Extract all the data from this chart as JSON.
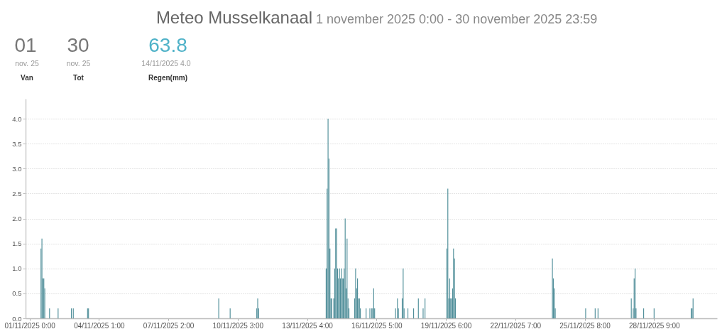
{
  "chart_data": {
    "type": "bar",
    "title": "Meteo Musselkanaal",
    "subtitle": "1 november 2025 0:00 - 30 november 2025 23:59",
    "annotations": [
      "01",
      "nov. 25",
      "Van",
      "30",
      "nov. 25",
      "Tot",
      "63.8",
      "14/11/2025 4.0",
      "Regen(mm)"
    ],
    "color": "#4f8e99",
    "x": [
      "2025-11-01T12:00",
      "2025-11-01T13:00",
      "2025-11-01T14:00",
      "2025-11-01T15:00",
      "2025-11-01T16:00",
      "2025-11-01T21:00",
      "2025-11-02T06:00",
      "2025-11-02T20:00",
      "2025-11-02T22:00",
      "2025-11-03T13:00",
      "2025-11-03T14:00",
      "2025-11-09T07:00",
      "2025-11-09T19:00",
      "2025-11-10T23:00",
      "2025-11-11T00:00",
      "2025-11-11T01:00",
      "2025-11-14T00:00",
      "2025-11-14T01:00",
      "2025-11-14T02:00",
      "2025-11-14T03:00",
      "2025-11-14T04:00",
      "2025-11-14T05:00",
      "2025-11-14T06:00",
      "2025-11-14T08:00",
      "2025-11-14T09:00",
      "2025-11-14T10:00",
      "2025-11-14T11:00",
      "2025-11-14T12:00",
      "2025-11-14T13:00",
      "2025-11-14T14:00",
      "2025-11-14T15:00",
      "2025-11-14T16:00",
      "2025-11-14T17:00",
      "2025-11-14T18:00",
      "2025-11-14T19:00",
      "2025-11-14T20:00",
      "2025-11-14T21:00",
      "2025-11-14T22:00",
      "2025-11-14T23:00",
      "2025-11-15T00:00",
      "2025-11-15T06:00",
      "2025-11-15T07:00",
      "2025-11-15T08:00",
      "2025-11-15T09:00",
      "2025-11-15T10:00",
      "2025-11-15T11:00",
      "2025-11-15T12:00",
      "2025-11-15T18:00",
      "2025-11-15T22:00",
      "2025-11-16T00:00",
      "2025-11-16T01:00",
      "2025-11-16T02:00",
      "2025-11-16T03:00",
      "2025-11-17T01:00",
      "2025-11-17T03:00",
      "2025-11-17T04:00",
      "2025-11-17T08:00",
      "2025-11-17T09:00",
      "2025-11-17T10:00",
      "2025-11-17T14:00",
      "2025-11-17T20:00",
      "2025-11-18T01:00",
      "2025-11-18T06:00",
      "2025-11-18T08:00",
      "2025-11-19T07:00",
      "2025-11-19T08:00",
      "2025-11-19T09:00",
      "2025-11-19T10:00",
      "2025-11-19T11:00",
      "2025-11-19T12:00",
      "2025-11-19T13:00",
      "2025-11-19T14:00",
      "2025-11-19T15:00",
      "2025-11-19T16:00",
      "2025-11-23T22:00",
      "2025-11-23T23:00",
      "2025-11-24T00:00",
      "2025-11-24T01:00",
      "2025-11-25T09:00",
      "2025-11-25T19:00",
      "2025-11-25T22:00",
      "2025-11-27T09:00",
      "2025-11-27T11:00",
      "2025-11-27T12:00",
      "2025-11-27T13:00",
      "2025-11-27T14:00",
      "2025-11-27T22:00",
      "2025-11-28T09:00",
      "2025-11-30T00:00",
      "2025-11-30T01:00",
      "2025-11-30T02:00"
    ],
    "values": [
      1.4,
      1.6,
      0.8,
      0.8,
      0.6,
      0.2,
      0.2,
      0.2,
      0.2,
      0.2,
      0.2,
      0.4,
      0.2,
      0.2,
      0.4,
      0.2,
      1.0,
      2.6,
      4.0,
      3.2,
      1.4,
      0.4,
      0.4,
      0.4,
      1.0,
      1.8,
      1.8,
      1.0,
      0.8,
      1.0,
      0.8,
      1.0,
      0.8,
      0.8,
      1.0,
      2.0,
      0.6,
      1.6,
      0.4,
      0.2,
      0.4,
      1.0,
      0.6,
      0.8,
      0.4,
      0.4,
      0.2,
      0.2,
      0.2,
      0.2,
      0.2,
      0.6,
      0.2,
      0.2,
      0.4,
      0.2,
      0.4,
      1.0,
      0.2,
      0.2,
      0.2,
      0.4,
      0.2,
      0.4,
      1.4,
      2.6,
      0.4,
      0.8,
      0.4,
      0.4,
      0.6,
      1.4,
      1.2,
      0.4,
      1.2,
      0.8,
      0.6,
      0.2,
      0.2,
      0.2,
      0.2,
      0.4,
      0.2,
      0.8,
      1.0,
      0.2,
      0.2,
      0.2,
      0.2,
      0.2,
      0.4
    ],
    "xlim": [
      "2025-10-31T23:30",
      "2025-11-30T23:30"
    ],
    "xticks": [
      {
        "value": "2025-11-01T00:00",
        "label": "01/11/2025 0:00"
      },
      {
        "value": "2025-11-04T01:00",
        "label": "04/11/2025 1:00"
      },
      {
        "value": "2025-11-07T02:00",
        "label": "07/11/2025 2:00"
      },
      {
        "value": "2025-11-10T03:00",
        "label": "10/11/2025 3:00"
      },
      {
        "value": "2025-11-13T04:00",
        "label": "13/11/2025 4:00"
      },
      {
        "value": "2025-11-16T05:00",
        "label": "16/11/2025 5:00"
      },
      {
        "value": "2025-11-19T06:00",
        "label": "19/11/2025 6:00"
      },
      {
        "value": "2025-11-22T07:00",
        "label": "22/11/2025 7:00"
      },
      {
        "value": "2025-11-25T08:00",
        "label": "25/11/2025 8:00"
      },
      {
        "value": "2025-11-28T09:00",
        "label": "28/11/2025 9:00"
      }
    ],
    "ylim": [
      0,
      4.4
    ],
    "yticks": [
      {
        "value": 0,
        "label": "0.0"
      },
      {
        "value": 0.5,
        "label": "0.5"
      },
      {
        "value": 1,
        "label": "1.0"
      },
      {
        "value": 1.5,
        "label": "1.5"
      },
      {
        "value": 2,
        "label": "2.0"
      },
      {
        "value": 2.5,
        "label": "2.5"
      },
      {
        "value": 3,
        "label": "3.0"
      },
      {
        "value": 3.5,
        "label": "3.5"
      },
      {
        "value": 4,
        "label": "4.0"
      }
    ],
    "grid": "y"
  }
}
